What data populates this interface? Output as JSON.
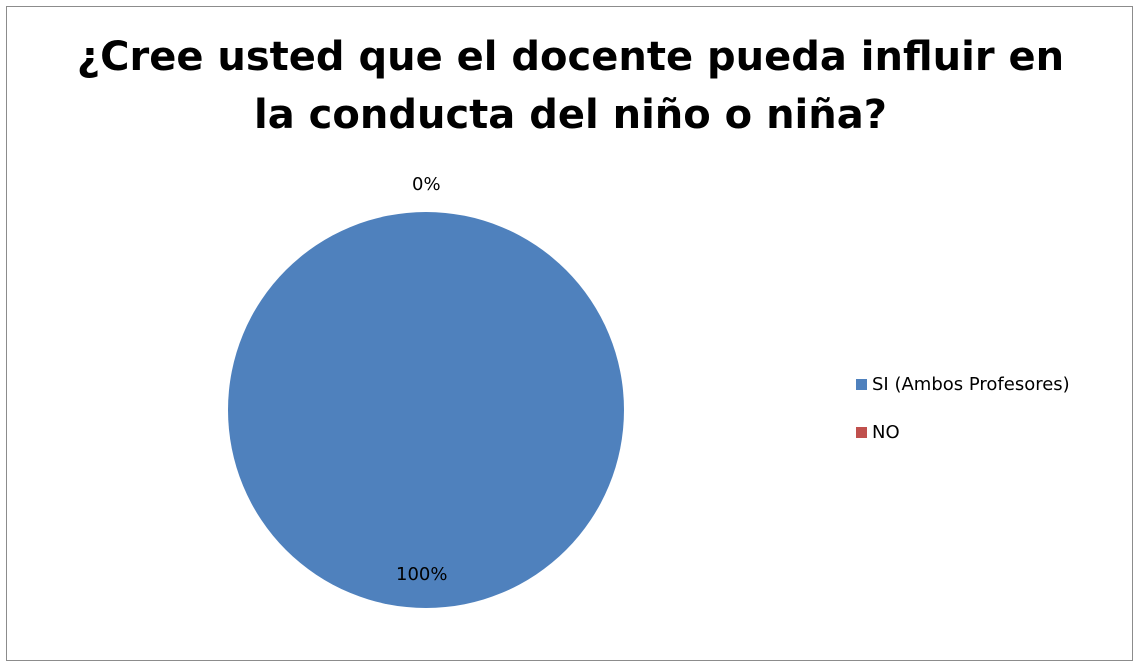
{
  "chart_data": {
    "type": "pie",
    "title": "¿Cree usted que el docente pueda influir en la conducta del niño o niña?",
    "title_lines": [
      "¿Cree usted que el docente pueda influir en",
      "la conducta del niño o niña?"
    ],
    "categories": [
      "SI (Ambos Profesores)",
      "NO"
    ],
    "values": [
      100,
      0
    ],
    "data_labels": [
      "100%",
      "0%"
    ],
    "colors": [
      "#4f81bd",
      "#c0504d"
    ],
    "legend_position": "right"
  }
}
